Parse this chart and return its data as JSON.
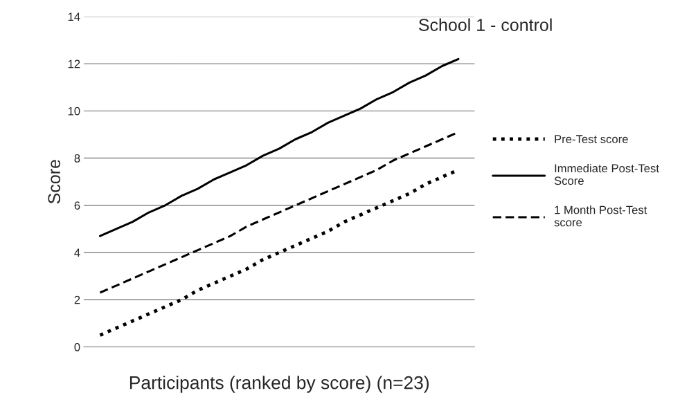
{
  "chart_data": {
    "type": "line",
    "title": "School 1 - control",
    "xlabel": "Participants (ranked by score) (n=23)",
    "ylabel": "Score",
    "categories": [
      null,
      null,
      null,
      null,
      null,
      null,
      null,
      null,
      null,
      null,
      null,
      null,
      null,
      null,
      null,
      null,
      null,
      null,
      null,
      null,
      null,
      null,
      null
    ],
    "series": [
      {
        "name": "Pre-Test score",
        "color": "#000000",
        "line_style": "dotted",
        "values": [
          0.5,
          0.8,
          1.1,
          1.4,
          1.7,
          2.0,
          2.4,
          2.7,
          3.0,
          3.3,
          3.7,
          4.0,
          4.3,
          4.6,
          4.9,
          5.3,
          5.6,
          5.9,
          6.2,
          6.5,
          6.9,
          7.2,
          7.5
        ]
      },
      {
        "name": "Immediate Post-Test\nScore",
        "color": "#000000",
        "line_style": "solid",
        "values": [
          4.7,
          5.0,
          5.3,
          5.7,
          6.0,
          6.4,
          6.7,
          7.1,
          7.4,
          7.7,
          8.1,
          8.4,
          8.8,
          9.1,
          9.5,
          9.8,
          10.1,
          10.5,
          10.8,
          11.2,
          11.5,
          11.9,
          12.2
        ]
      },
      {
        "name": "1 Month Post-Test\nscore",
        "color": "#000000",
        "line_style": "dashed",
        "values": [
          2.3,
          2.6,
          2.9,
          3.2,
          3.5,
          3.8,
          4.1,
          4.4,
          4.7,
          5.1,
          5.4,
          5.7,
          6.0,
          6.3,
          6.6,
          6.9,
          7.2,
          7.5,
          7.9,
          8.2,
          8.5,
          8.8,
          9.1
        ]
      }
    ],
    "ylim": [
      0,
      14
    ],
    "yticks": [
      0,
      2,
      4,
      6,
      8,
      10,
      12,
      14
    ],
    "grid": "y",
    "legend": "right",
    "tick_labels": "y",
    "marker": "none"
  }
}
